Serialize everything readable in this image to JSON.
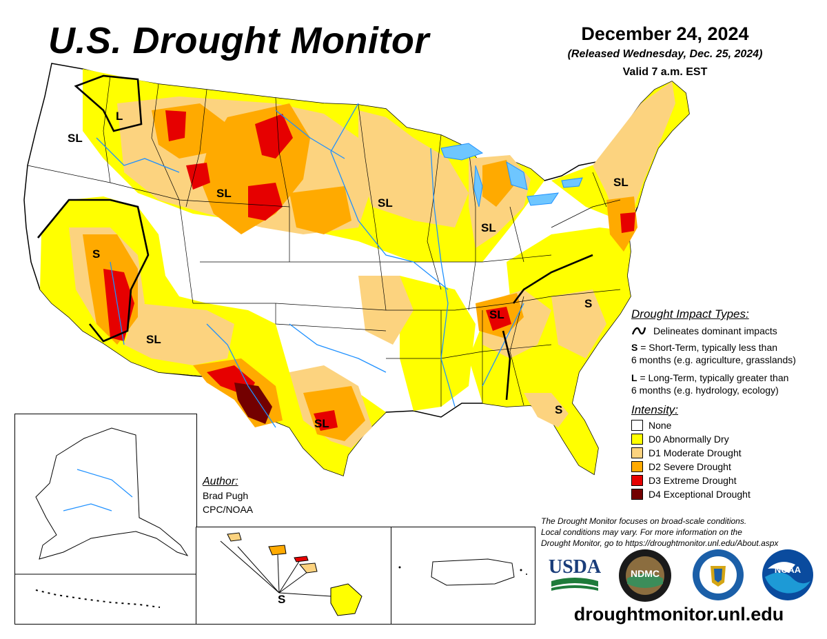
{
  "header": {
    "title": "U.S. Drought Monitor",
    "date": "December 24, 2024",
    "released": "(Released Wednesday, Dec. 25, 2024)",
    "valid": "Valid 7 a.m. EST"
  },
  "impact_types": {
    "heading": "Drought Impact Types:",
    "delineates": "Delineates dominant impacts",
    "short_term_key": "S",
    "short_term_text": "= Short-Term, typically less than",
    "short_term_text2": "6 months (e.g. agriculture, grasslands)",
    "long_term_key": "L",
    "long_term_text": "= Long-Term, typically greater than",
    "long_term_text2": "6 months (e.g. hydrology, ecology)"
  },
  "intensity": {
    "heading": "Intensity:",
    "levels": [
      {
        "label": "None",
        "color": "#ffffff"
      },
      {
        "label": "D0 Abnormally Dry",
        "color": "#ffff00"
      },
      {
        "label": "D1 Moderate Drought",
        "color": "#fcd37f"
      },
      {
        "label": "D2 Severe Drought",
        "color": "#ffaa00"
      },
      {
        "label": "D3 Extreme Drought",
        "color": "#e60000"
      },
      {
        "label": "D4 Exceptional Drought",
        "color": "#730000"
      }
    ]
  },
  "author": {
    "heading": "Author:",
    "name": "Brad Pugh",
    "org": "CPC/NOAA"
  },
  "disclaimer": {
    "line1": "The Drought Monitor focuses on broad-scale conditions.",
    "line2": "Local conditions may vary. For more information on the",
    "line3": "Drought Monitor, go to https://droughtmonitor.unl.edu/About.aspx"
  },
  "map_labels": {
    "sl_pacific_nw": "SL",
    "l_idaho": "L",
    "sl_wyoming": "SL",
    "sl_nebraska": "SL",
    "sl_new_york": "SL",
    "sl_illinois": "SL",
    "s_nevada": "S",
    "sl_arizona": "SL",
    "sl_tennessee": "SL",
    "s_carolina": "S",
    "sl_texas": "SL",
    "s_georgia": "S",
    "s_hawaii": "S"
  },
  "logos": {
    "usda": "USDA",
    "ndmc": "NDMC",
    "noaa": "NOAA"
  },
  "website": "droughtmonitor.unl.edu"
}
